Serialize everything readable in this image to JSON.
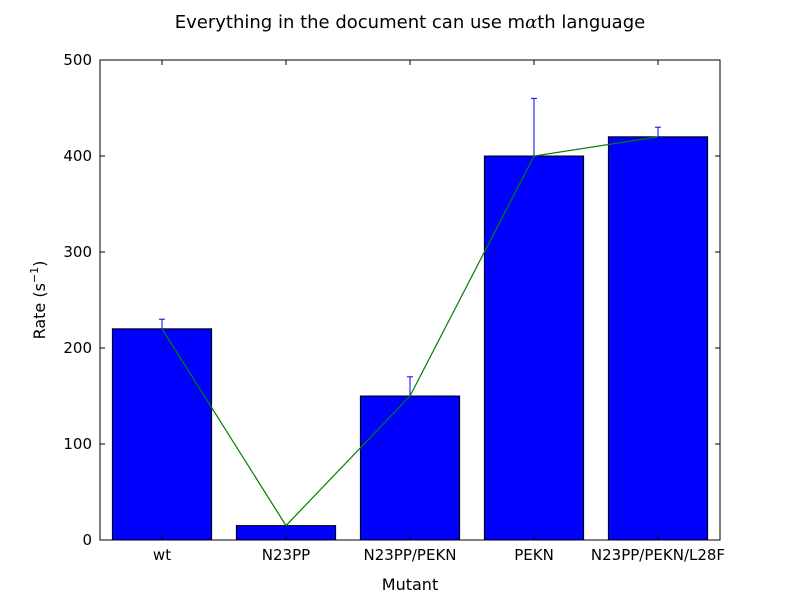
{
  "chart_data": {
    "type": "bar",
    "title_pre": "Everything in the document can use m",
    "title_alpha": "α",
    "title_post": "th language",
    "xlabel": "Mutant",
    "ylabel_main": "Rate (s",
    "ylabel_sup": "−1",
    "ylabel_close": ")",
    "categories": [
      "wt",
      "N23PP",
      "N23PP/PEKN",
      "PEKN",
      "N23PP/PEKN/L28F"
    ],
    "values": [
      220,
      15,
      150,
      400,
      420
    ],
    "errors": [
      10,
      0,
      20,
      60,
      10
    ],
    "line_values": [
      220,
      15,
      150,
      400,
      420
    ],
    "ylim": [
      0,
      500
    ],
    "yticks": [
      0,
      100,
      200,
      300,
      400,
      500
    ],
    "bar_color": "#0000ff",
    "error_color": "#0000ff",
    "line_color": "#008000",
    "grid": false,
    "legend": "none"
  }
}
